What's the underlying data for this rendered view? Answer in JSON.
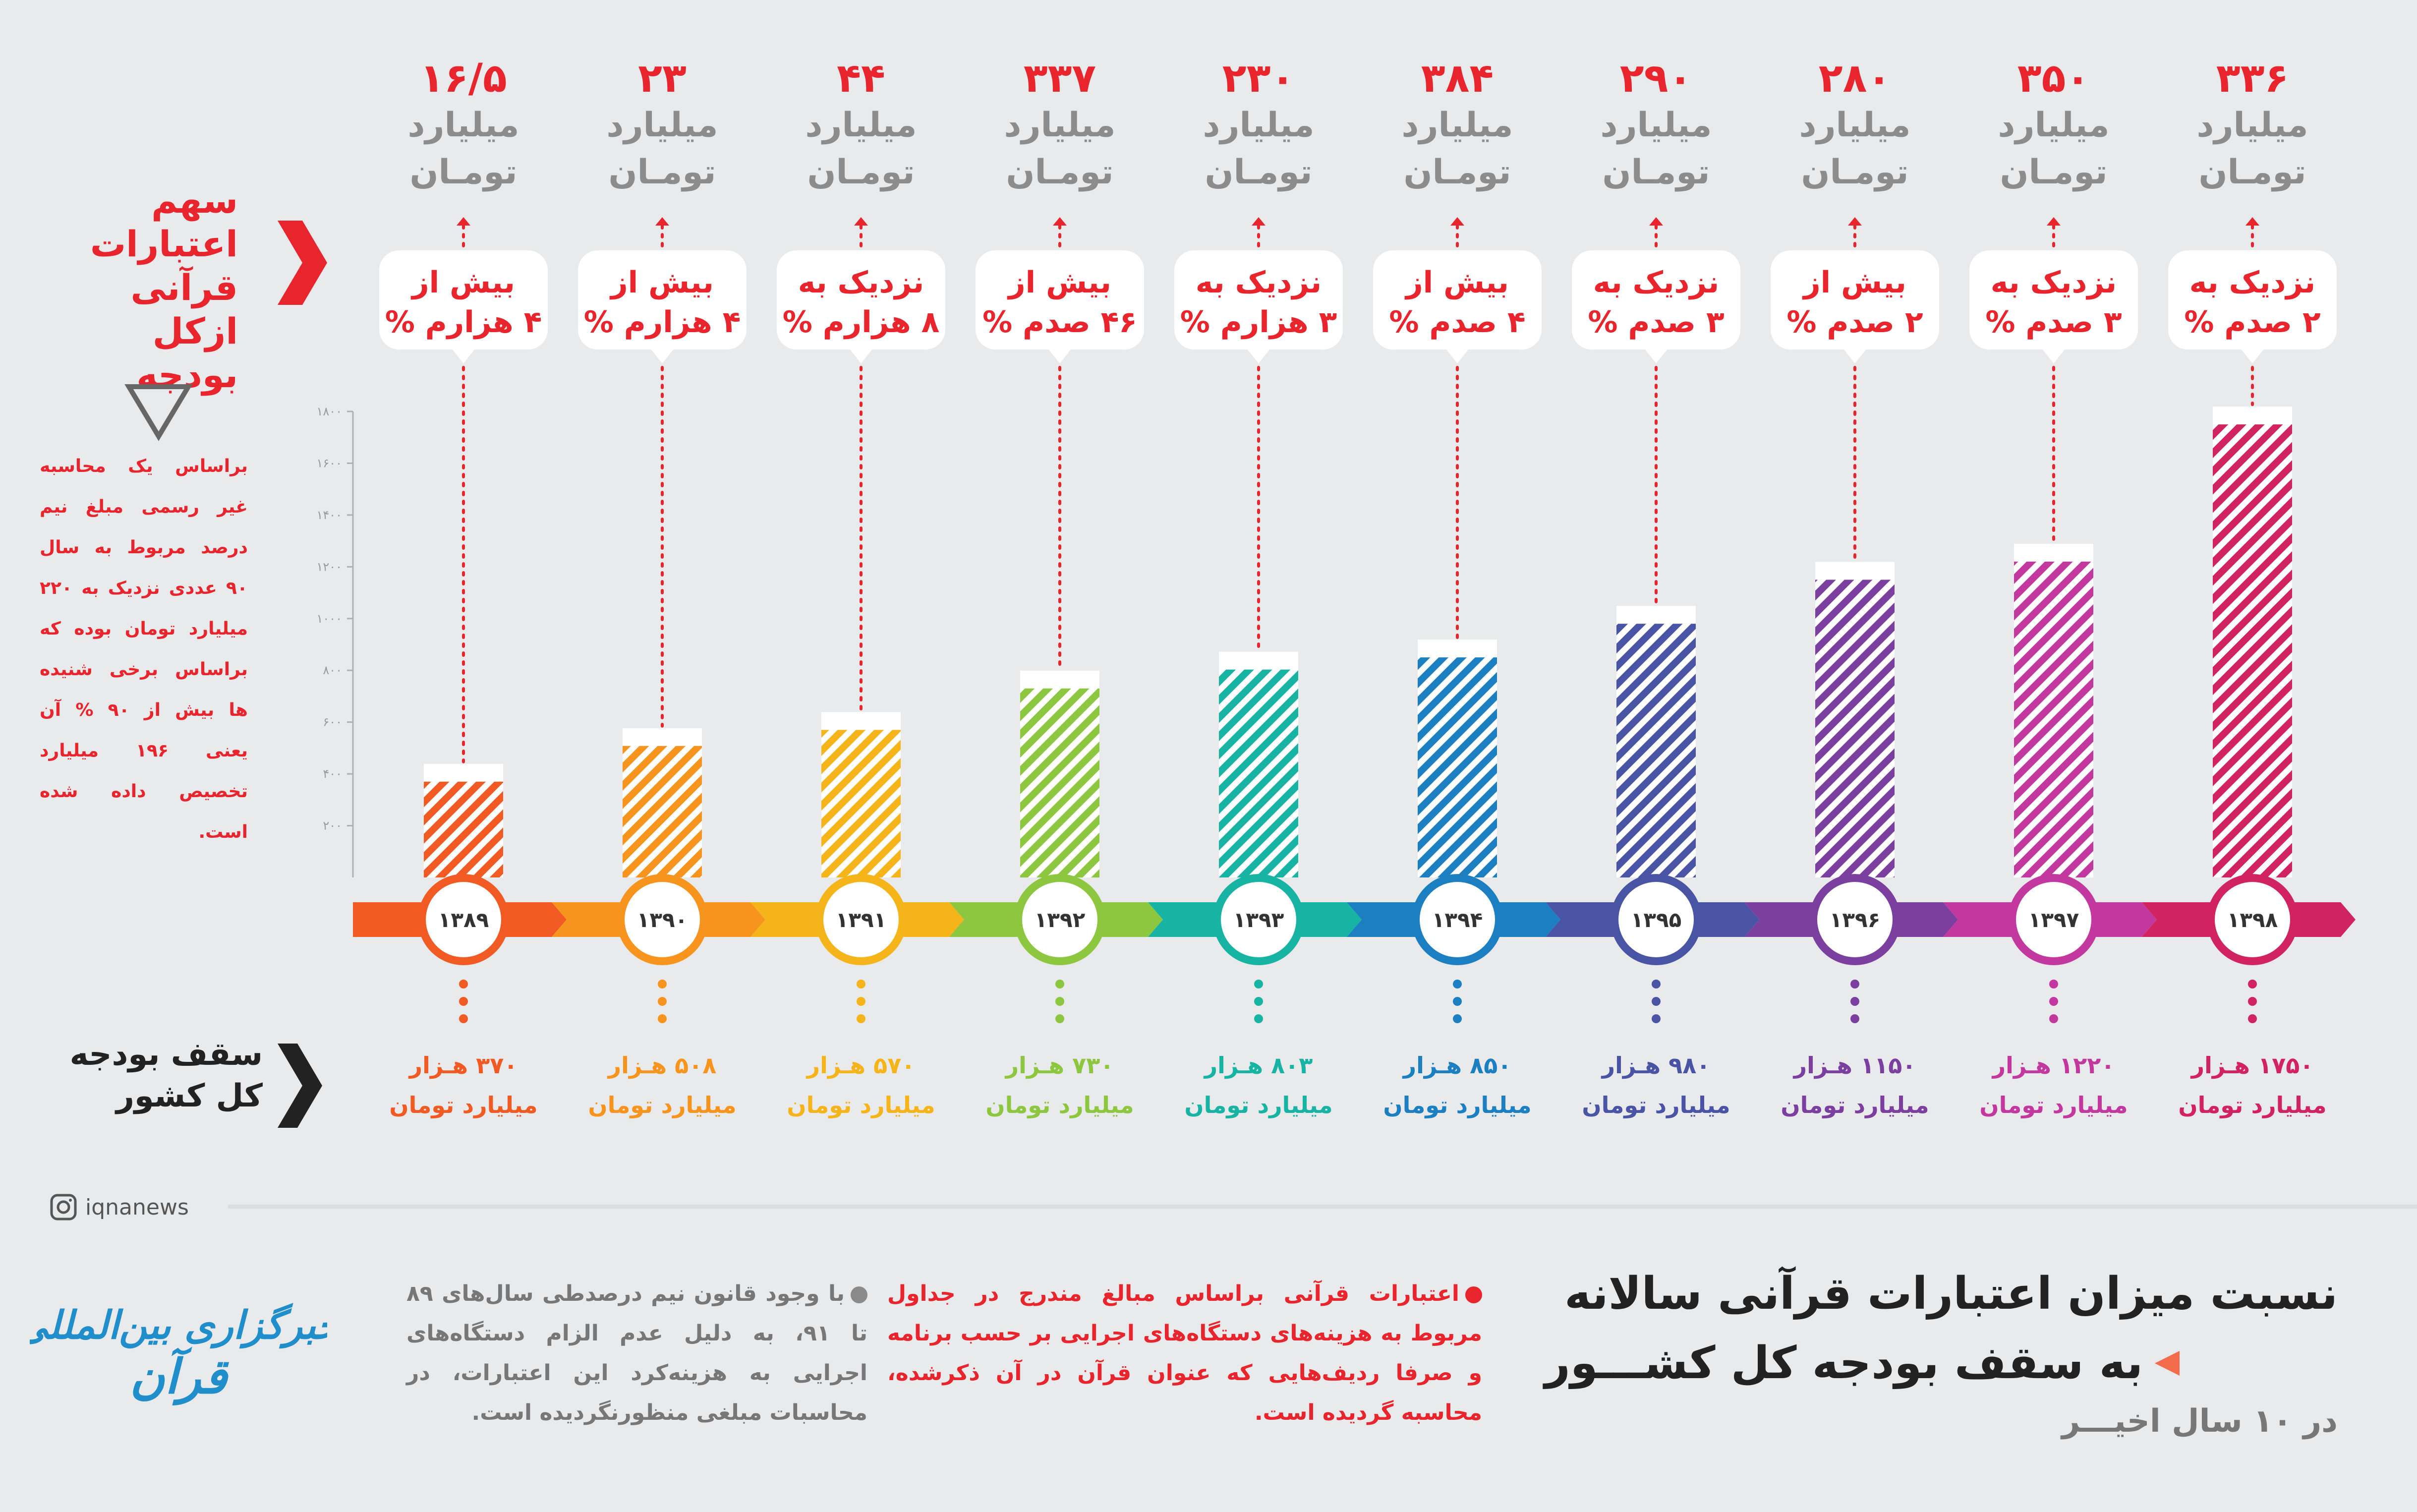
{
  "side_labels": {
    "share_title_lines": [
      "سهم",
      "اعتبارات",
      "قرآنی",
      "ازکل بودجه"
    ],
    "budget_title_lines": [
      "سقف بودجه",
      "کل کشور"
    ],
    "note_left": "براساس یک محاسبه غیر رسمی مبلغ نیم درصد مربوط به سال ۹۰ عددی نزدیک به ۲۲۰ میلیارد تومان بوده که براساس برخی شنیده ها بیش از ۹۰ % آن یعنی ۱۹۶ میلیارد تخصیص داده شده است."
  },
  "chart_data": {
    "type": "bar",
    "ylim": [
      0,
      1800
    ],
    "yticks": [
      "۲۰۰",
      "۴۰۰",
      "۶۰۰",
      "۸۰۰",
      "۱۰۰۰",
      "۱۲۰۰",
      "۱۴۰۰",
      "۱۶۰۰",
      "۱۸۰۰"
    ],
    "categories": [
      "۱۳۸۹",
      "۱۳۹۰",
      "۱۳۹۱",
      "۱۳۹۲",
      "۱۳۹۳",
      "۱۳۹۴",
      "۱۳۹۵",
      "۱۳۹۶",
      "۱۳۹۷",
      "۱۳۹۸"
    ],
    "budget_values": [
      370,
      508,
      570,
      730,
      803,
      850,
      980,
      1150,
      1220,
      1750
    ],
    "quran_credit": [
      {
        "amount": "۱۶/۵",
        "unit1": "میلیارد",
        "unit2": "تومـان"
      },
      {
        "amount": "۲۳",
        "unit1": "میلیارد",
        "unit2": "تومـان"
      },
      {
        "amount": "۴۴",
        "unit1": "میلیارد",
        "unit2": "تومـان"
      },
      {
        "amount": "۳۳۷",
        "unit1": "میلیارد",
        "unit2": "تومـان"
      },
      {
        "amount": "۲۳۰",
        "unit1": "میلیارد",
        "unit2": "تومـان"
      },
      {
        "amount": "۳۸۴",
        "unit1": "میلیارد",
        "unit2": "تومـان"
      },
      {
        "amount": "۲۹۰",
        "unit1": "میلیارد",
        "unit2": "تومـان"
      },
      {
        "amount": "۲۸۰",
        "unit1": "میلیارد",
        "unit2": "تومـان"
      },
      {
        "amount": "۳۵۰",
        "unit1": "میلیارد",
        "unit2": "تومـان"
      },
      {
        "amount": "۳۳۶",
        "unit1": "میلیارد",
        "unit2": "تومـان"
      }
    ],
    "share_labels": [
      [
        "بیش از",
        "۴ هزارم %"
      ],
      [
        "بیش از",
        "۴ هزارم %"
      ],
      [
        "نزدیک به",
        "۸ هزارم %"
      ],
      [
        "بیش از",
        "۴۶ صدم %"
      ],
      [
        "نزدیک به",
        "۳ هزارم %"
      ],
      [
        "بیش از",
        "۴ صدم %"
      ],
      [
        "نزدیک به",
        "۳ صدم %"
      ],
      [
        "بیش از",
        "۲ صدم %"
      ],
      [
        "نزدیک به",
        "۳ صدم %"
      ],
      [
        "نزدیک به",
        "۲ صدم %"
      ]
    ],
    "budget_labels": [
      [
        "۳۷۰ هـزار",
        "میلیارد تومان"
      ],
      [
        "۵۰۸ هـزار",
        "میلیارد تومان"
      ],
      [
        "۵۷۰ هـزار",
        "میلیارد تومان"
      ],
      [
        "۷۳۰ هـزار",
        "میلیارد تومان"
      ],
      [
        "۸۰۳ هـزار",
        "میلیارد تومان"
      ],
      [
        "۸۵۰ هـزار",
        "میلیارد تومان"
      ],
      [
        "۹۸۰ هـزار",
        "میلیارد تومان"
      ],
      [
        "۱۱۵۰ هـزار",
        "میلیارد تومان"
      ],
      [
        "۱۲۲۰ هـزار",
        "میلیارد تومان"
      ],
      [
        "۱۷۵۰ هـزار",
        "میلیارد تومان"
      ]
    ],
    "colors": [
      "#f15a22",
      "#f7941d",
      "#f4b41a",
      "#8dc63f",
      "#17b3a3",
      "#1b7fc1",
      "#4a54a5",
      "#7b3fa0",
      "#c2389f",
      "#d1235f"
    ]
  },
  "footer": {
    "watermark": "iqnanews",
    "title_line1": "نسبت میزان اعتبارات قرآنی سالانه",
    "title_line2": "به سقف بودجه کل کشـــور",
    "subtitle": "در ۱۰ سال اخیـــر",
    "note_red": "اعتبارات قرآنی براساس مبالغ مندرج در جداول مربوط به هزینه‌های دستگاه‌های اجرایی بر حسب برنامه و صرفا ردیف‌هایی که عنوان قرآن در آن ذکرشده، محاسبه گردیده است.",
    "note_gray": "با وجود قانون نیم درصدطی سال‌های ۸۹ تا ۹۱، به دلیل عدم الزام دستگاه‌های اجرایی به هزینه‌کرد این اعتبارات، در محاسبات مبلغی منظورنگردیده است.",
    "logo_line1": "خبرگزاری بین‌المللی",
    "logo_line2": "قرآن"
  }
}
